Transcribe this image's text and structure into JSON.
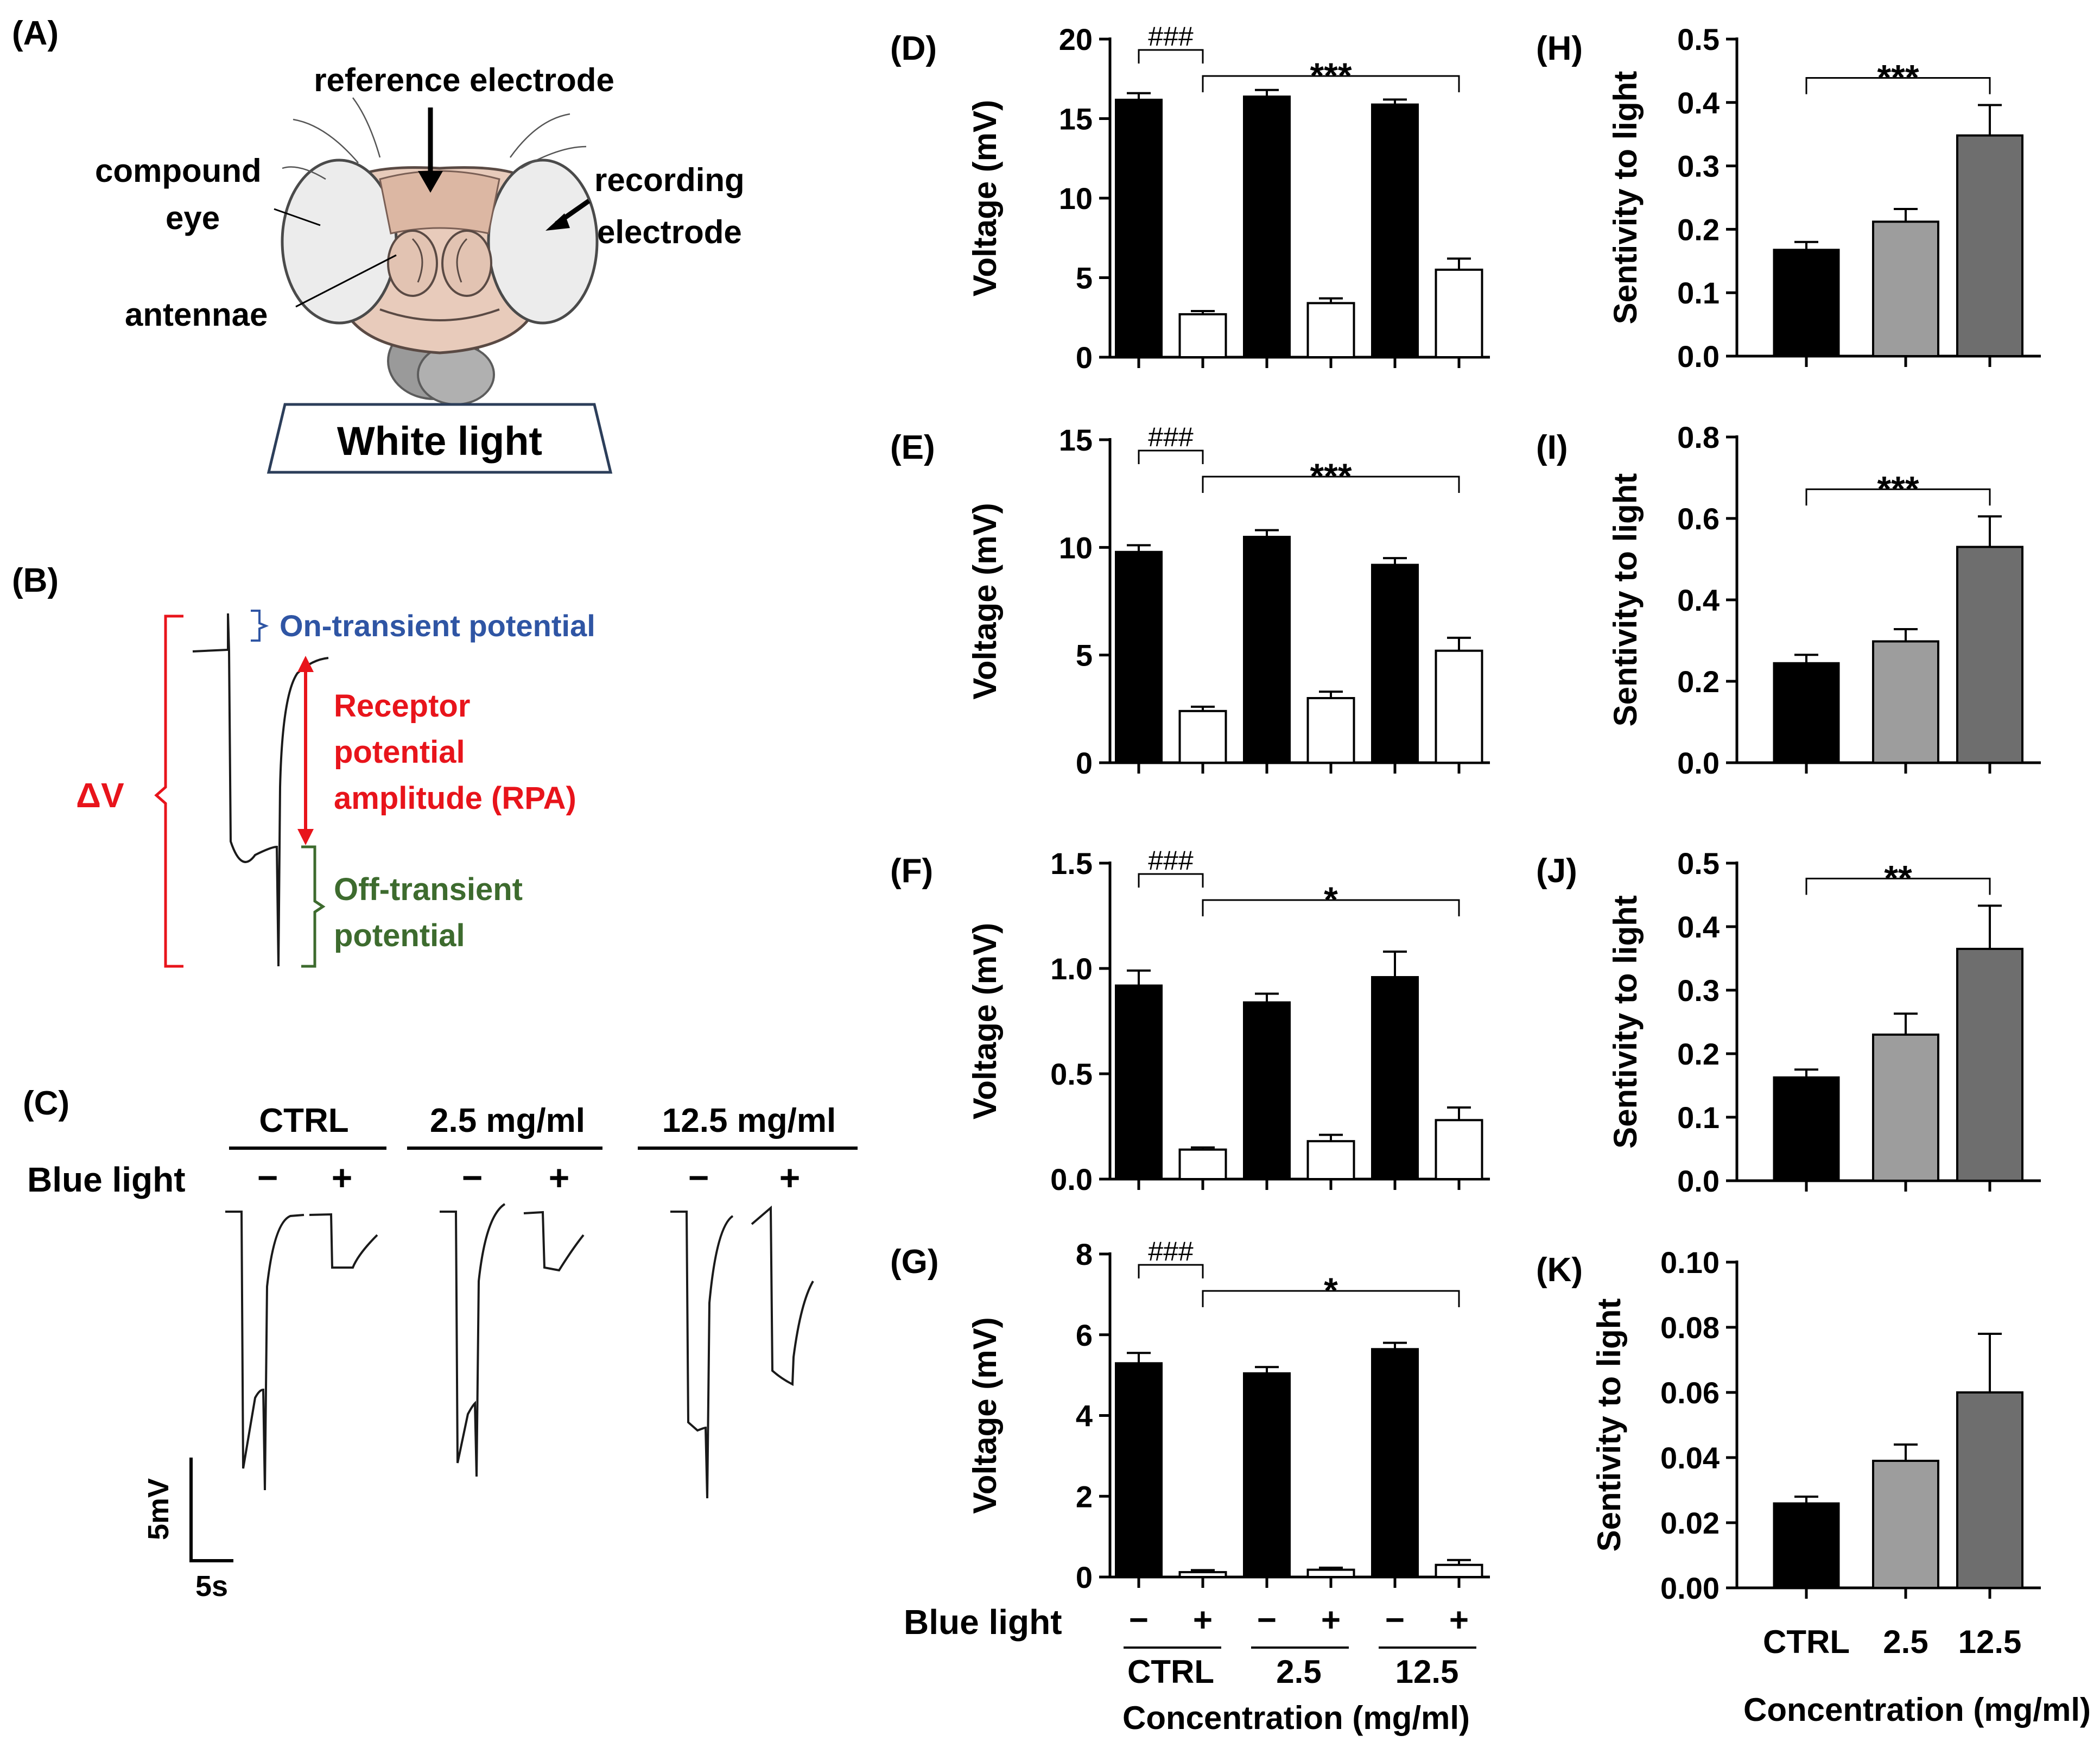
{
  "panel_a": {
    "letter": "(A)",
    "labels": {
      "reference_electrode": "reference electrode",
      "compound": "compound",
      "eye": "eye",
      "recording": "recording",
      "electrode": "electrode",
      "antennae": "antennae"
    },
    "light_box": "White light"
  },
  "panel_b": {
    "letter": "(B)",
    "on_transient": "On-transient potential",
    "receptor_line1": "Receptor",
    "receptor_line2": "potential",
    "receptor_line3": "amplitude (RPA)",
    "delta_v": "ΔV",
    "off_line1": "Off-transient",
    "off_line2": "potential",
    "colors": {
      "on": "#2f55a4",
      "receptor": "#e8141b",
      "off": "#3d6b2e"
    }
  },
  "panel_c": {
    "letter": "(C)",
    "groups": [
      "CTRL",
      "2.5 mg/ml",
      "12.5 mg/ml"
    ],
    "blue_light_label": "Blue light",
    "minus": "−",
    "plus": "+",
    "scale_v": "5mV",
    "scale_t": "5s"
  },
  "voltage_panels": {
    "ylabel": "Voltage (mV)",
    "blue_light_label": "Blue light",
    "minus": "−",
    "plus": "+",
    "groups": [
      "CTRL",
      "2.5",
      "12.5"
    ],
    "xlabel": "Concentration (mg/ml)",
    "hash_label": "###"
  },
  "sensitivity_panels": {
    "ylabel": "Sentivity to light",
    "categories": [
      "CTRL",
      "2.5",
      "12.5"
    ],
    "xlabel": "Concentration (mg/ml)"
  },
  "chart_data": [
    {
      "id": "D",
      "letter": "(D)",
      "type": "bar",
      "ylabel": "Voltage (mV)",
      "ylim": [
        0,
        20
      ],
      "yticks": [
        "0",
        "5",
        "10",
        "15",
        "20"
      ],
      "ytick_values": [
        0,
        5,
        10,
        15,
        20
      ],
      "categories": [
        "CTRL −",
        "CTRL +",
        "2.5 −",
        "2.5 +",
        "12.5 −",
        "12.5 +"
      ],
      "values": [
        16.2,
        2.7,
        16.4,
        3.4,
        15.9,
        5.5
      ],
      "errors": [
        0.4,
        0.2,
        0.4,
        0.3,
        0.3,
        0.7
      ],
      "fills": [
        "#000000",
        "#ffffff",
        "#000000",
        "#ffffff",
        "#000000",
        "#ffffff"
      ],
      "annotations": [
        {
          "text": "###",
          "from": 0,
          "to": 1
        },
        {
          "text": "***",
          "from": 1,
          "to": 5
        }
      ]
    },
    {
      "id": "E",
      "letter": "(E)",
      "type": "bar",
      "ylabel": "Voltage (mV)",
      "ylim": [
        0,
        15
      ],
      "yticks": [
        "0",
        "5",
        "10",
        "15"
      ],
      "ytick_values": [
        0,
        5,
        10,
        15
      ],
      "categories": [
        "CTRL −",
        "CTRL +",
        "2.5 −",
        "2.5 +",
        "12.5 −",
        "12.5 +"
      ],
      "values": [
        9.8,
        2.4,
        10.5,
        3.0,
        9.2,
        5.2
      ],
      "errors": [
        0.3,
        0.2,
        0.3,
        0.3,
        0.3,
        0.6
      ],
      "fills": [
        "#000000",
        "#ffffff",
        "#000000",
        "#ffffff",
        "#000000",
        "#ffffff"
      ],
      "annotations": [
        {
          "text": "###",
          "from": 0,
          "to": 1
        },
        {
          "text": "***",
          "from": 1,
          "to": 5
        }
      ]
    },
    {
      "id": "F",
      "letter": "(F)",
      "type": "bar",
      "ylabel": "Voltage (mV)",
      "ylim": [
        0,
        1.5
      ],
      "yticks": [
        "0.0",
        "0.5",
        "1.0",
        "1.5"
      ],
      "ytick_values": [
        0,
        0.5,
        1.0,
        1.5
      ],
      "categories": [
        "CTRL −",
        "CTRL +",
        "2.5 −",
        "2.5 +",
        "12.5 −",
        "12.5 +"
      ],
      "values": [
        0.92,
        0.14,
        0.84,
        0.18,
        0.96,
        0.28
      ],
      "errors": [
        0.07,
        0.01,
        0.04,
        0.03,
        0.12,
        0.06
      ],
      "fills": [
        "#000000",
        "#ffffff",
        "#000000",
        "#ffffff",
        "#000000",
        "#ffffff"
      ],
      "annotations": [
        {
          "text": "###",
          "from": 0,
          "to": 1
        },
        {
          "text": "*",
          "from": 1,
          "to": 5
        }
      ]
    },
    {
      "id": "G",
      "letter": "(G)",
      "type": "bar",
      "ylabel": "Voltage (mV)",
      "ylim": [
        0,
        8
      ],
      "yticks": [
        "0",
        "2",
        "4",
        "6",
        "8"
      ],
      "ytick_values": [
        0,
        2,
        4,
        6,
        8
      ],
      "categories": [
        "CTRL −",
        "CTRL +",
        "2.5 −",
        "2.5 +",
        "12.5 −",
        "12.5 +"
      ],
      "values": [
        5.3,
        0.12,
        5.05,
        0.18,
        5.65,
        0.3
      ],
      "errors": [
        0.25,
        0.05,
        0.15,
        0.05,
        0.15,
        0.12
      ],
      "fills": [
        "#000000",
        "#ffffff",
        "#000000",
        "#ffffff",
        "#000000",
        "#ffffff"
      ],
      "annotations": [
        {
          "text": "###",
          "from": 0,
          "to": 1
        },
        {
          "text": "*",
          "from": 1,
          "to": 5
        }
      ]
    },
    {
      "id": "H",
      "letter": "(H)",
      "type": "bar",
      "ylabel": "Sentivity to light",
      "ylim": [
        0,
        0.5
      ],
      "yticks": [
        "0.0",
        "0.1",
        "0.2",
        "0.3",
        "0.4",
        "0.5"
      ],
      "ytick_values": [
        0,
        0.1,
        0.2,
        0.3,
        0.4,
        0.5
      ],
      "categories": [
        "CTRL",
        "2.5",
        "12.5"
      ],
      "values": [
        0.168,
        0.212,
        0.348
      ],
      "errors": [
        0.012,
        0.02,
        0.048
      ],
      "fills": [
        "#000000",
        "#9d9d9d",
        "#6e6e6e"
      ],
      "annotations": [
        {
          "text": "***",
          "from": 0,
          "to": 2
        }
      ]
    },
    {
      "id": "I",
      "letter": "(I)",
      "type": "bar",
      "ylabel": "Sentivity to light",
      "ylim": [
        0,
        0.8
      ],
      "yticks": [
        "0.0",
        "0.2",
        "0.4",
        "0.6",
        "0.8"
      ],
      "ytick_values": [
        0,
        0.2,
        0.4,
        0.6,
        0.8
      ],
      "categories": [
        "CTRL",
        "2.5",
        "12.5"
      ],
      "values": [
        0.245,
        0.298,
        0.53
      ],
      "errors": [
        0.02,
        0.03,
        0.075
      ],
      "fills": [
        "#000000",
        "#9d9d9d",
        "#6e6e6e"
      ],
      "annotations": [
        {
          "text": "***",
          "from": 0,
          "to": 2
        }
      ]
    },
    {
      "id": "J",
      "letter": "(J)",
      "type": "bar",
      "ylabel": "Sentivity to light",
      "ylim": [
        0,
        0.5
      ],
      "yticks": [
        "0.0",
        "0.1",
        "0.2",
        "0.3",
        "0.4",
        "0.5"
      ],
      "ytick_values": [
        0,
        0.1,
        0.2,
        0.3,
        0.4,
        0.5
      ],
      "categories": [
        "CTRL",
        "2.5",
        "12.5"
      ],
      "values": [
        0.163,
        0.23,
        0.365
      ],
      "errors": [
        0.012,
        0.033,
        0.068
      ],
      "fills": [
        "#000000",
        "#9d9d9d",
        "#6e6e6e"
      ],
      "annotations": [
        {
          "text": "**",
          "from": 0,
          "to": 2
        }
      ]
    },
    {
      "id": "K",
      "letter": "(K)",
      "type": "bar",
      "ylabel": "Sentivity to light",
      "ylim": [
        0,
        0.1
      ],
      "yticks": [
        "0.00",
        "0.02",
        "0.04",
        "0.06",
        "0.08",
        "0.10"
      ],
      "ytick_values": [
        0,
        0.02,
        0.04,
        0.06,
        0.08,
        0.1
      ],
      "categories": [
        "CTRL",
        "2.5",
        "12.5"
      ],
      "values": [
        0.026,
        0.039,
        0.06
      ],
      "errors": [
        0.002,
        0.005,
        0.018
      ],
      "fills": [
        "#000000",
        "#9d9d9d",
        "#6e6e6e"
      ],
      "annotations": []
    }
  ]
}
